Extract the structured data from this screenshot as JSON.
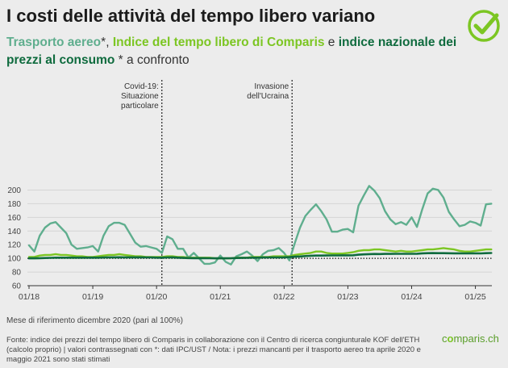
{
  "title": "I costi delle attività del tempo libero variano",
  "subtitle": {
    "air": "Trasporto aereo",
    "star1": "*, ",
    "leisure": "Indice del tempo libero di Comparis",
    "conj": " e ",
    "cpi": "indice nazionale dei prezzi al consumo",
    "tail": " * a confronto"
  },
  "note": "Mese di riferimento dicembre 2020 (pari al 100%)",
  "footer": "Fonte: indice dei prezzi del tempo libero di Comparis in collaborazione con il Centro di ricerca congiunturale KOF dell'ETH (calcolo proprio) | valori contrassegnati con *: dati IPC/UST / Nota: i prezzi mancanti per il trasporto aereo tra aprile 2020 e maggio 2021 sono stati stimati",
  "brand": {
    "pre": "c",
    "o": "o",
    "post": "mparis.ch"
  },
  "colors": {
    "air": "#5fae8e",
    "leisure": "#7cc623",
    "cpi": "#0f6b3e",
    "grid": "#d4d4d4",
    "logo": "#7cc623"
  },
  "chart_data": {
    "type": "line",
    "x_start": "01/18",
    "x_tick_labels": [
      "01/18",
      "01/19",
      "01/20",
      "01/21",
      "01/22",
      "01/23",
      "01/24",
      "01/25"
    ],
    "y_ticks": [
      60,
      80,
      100,
      120,
      140,
      160,
      180,
      200
    ],
    "ylim": [
      60,
      210
    ],
    "reference_line": 100,
    "annotations": [
      {
        "month_index": 25,
        "lines": [
          "Covid-19:",
          "Situazione",
          "particolare"
        ]
      },
      {
        "month_index": 49.5,
        "lines": [
          "Invasione",
          "dell'Ucraina"
        ]
      }
    ],
    "series": [
      {
        "name": "Trasporto aereo",
        "values": [
          119,
          110,
          133,
          145,
          151,
          153,
          145,
          137,
          120,
          114,
          115,
          116,
          118,
          110,
          133,
          147,
          152,
          152,
          149,
          136,
          123,
          117,
          118,
          116,
          114,
          108,
          132,
          128,
          114,
          114,
          101,
          108,
          100,
          92,
          92,
          94,
          104,
          95,
          91,
          103,
          106,
          110,
          104,
          96,
          106,
          111,
          112,
          115,
          108,
          97,
          122,
          145,
          162,
          171,
          179,
          169,
          157,
          139,
          139,
          142,
          143,
          138,
          177,
          192,
          206,
          199,
          188,
          169,
          157,
          150,
          153,
          149,
          160,
          146,
          172,
          195,
          202,
          200,
          189,
          168,
          157,
          147,
          149,
          154,
          152,
          148,
          179,
          180
        ]
      },
      {
        "name": "Indice del tempo libero di Comparis",
        "values": [
          102,
          102,
          104,
          105,
          105,
          106,
          105,
          105,
          104,
          103,
          103,
          102,
          102,
          103,
          104,
          105,
          105,
          106,
          105,
          104,
          103,
          103,
          102,
          102,
          102,
          102,
          103,
          103,
          102,
          102,
          101,
          101,
          101,
          101,
          101,
          100,
          100,
          100,
          100,
          101,
          101,
          101,
          102,
          102,
          102,
          102,
          103,
          103,
          103,
          103,
          105,
          106,
          107,
          108,
          110,
          110,
          108,
          107,
          107,
          107,
          108,
          109,
          111,
          112,
          112,
          113,
          113,
          112,
          111,
          110,
          111,
          110,
          110,
          111,
          112,
          113,
          113,
          114,
          115,
          114,
          113,
          111,
          110,
          110,
          111,
          112,
          113,
          113
        ]
      },
      {
        "name": "indice nazionale dei prezzi al consumo",
        "values": [
          100,
          100,
          100.3,
          100.5,
          100.7,
          101,
          101,
          101,
          101,
          101,
          101,
          101,
          101,
          101,
          101.2,
          101.4,
          101.5,
          101.6,
          101.5,
          101.5,
          101.4,
          101.4,
          101.3,
          101.3,
          101,
          101,
          101.3,
          101.5,
          101,
          100.6,
          100.4,
          100.3,
          100.3,
          100.3,
          100.2,
          100,
          100,
          100,
          100.2,
          100.5,
          100.6,
          100.8,
          101,
          101,
          101.2,
          101.3,
          101.3,
          101.3,
          101.5,
          101.8,
          102.4,
          102.8,
          103.3,
          103.8,
          104,
          104,
          104.2,
          104.3,
          104.3,
          104.4,
          104.4,
          104.5,
          105.3,
          105.8,
          106.2,
          106.4,
          106.3,
          106.5,
          106.5,
          106.6,
          106.7,
          106.7,
          106.6,
          106.8,
          107.4,
          107.6,
          107.7,
          107.6,
          107.6,
          107.5,
          107.4,
          107.3,
          107.2,
          107.3,
          107.3,
          107.2,
          107.6,
          107.8
        ]
      }
    ]
  }
}
